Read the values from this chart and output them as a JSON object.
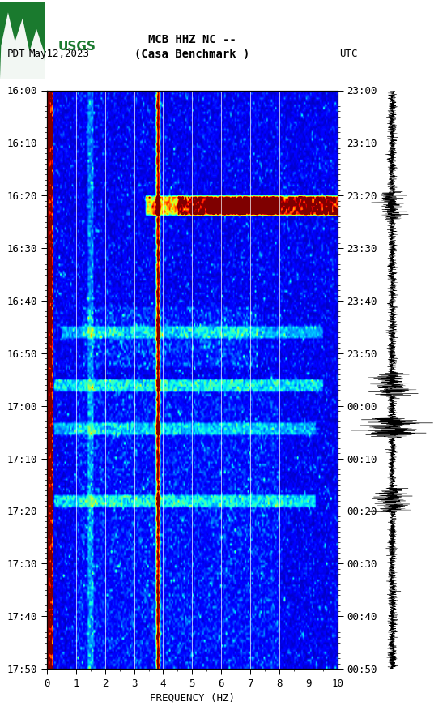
{
  "title_line1": "MCB HHZ NC --",
  "title_line2": "(Casa Benchmark )",
  "left_label": "PDT",
  "date_label": "May12,2023",
  "right_label": "UTC",
  "xlabel": "FREQUENCY (HZ)",
  "left_times": [
    "16:00",
    "16:10",
    "16:20",
    "16:30",
    "16:40",
    "16:50",
    "17:00",
    "17:10",
    "17:20",
    "17:30",
    "17:40",
    "17:50"
  ],
  "right_times": [
    "23:00",
    "23:10",
    "23:20",
    "23:30",
    "23:40",
    "23:50",
    "00:00",
    "00:10",
    "00:20",
    "00:30",
    "00:40",
    "00:50"
  ],
  "freq_min": 0,
  "freq_max": 10,
  "freq_ticks": [
    0,
    1,
    2,
    3,
    4,
    5,
    6,
    7,
    8,
    9,
    10
  ],
  "vline_freqs": [
    1,
    2,
    3,
    4,
    5,
    6,
    7,
    8,
    9
  ],
  "n_time": 240,
  "n_freq": 200,
  "figure_bg": "#ffffff",
  "usgs_green": "#1a7a2e",
  "font_family": "monospace"
}
